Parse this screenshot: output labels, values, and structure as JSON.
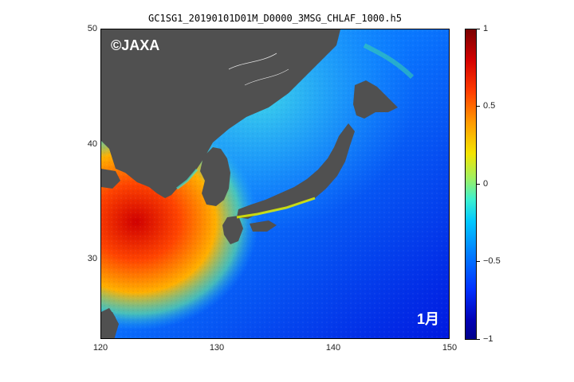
{
  "title": "GC1SG1_20190101D01M_D0000_3MSG_CHLAF_1000.h5",
  "watermark": "©JAXA",
  "month_label": "1月",
  "axes": {
    "x_ticks": [
      "120",
      "130",
      "140",
      "150"
    ],
    "y_ticks": [
      "50",
      "40",
      "30"
    ]
  },
  "colorbar": {
    "ticks": [
      "1",
      "0.5",
      "0",
      "−0.5",
      "−1"
    ],
    "range": [
      -1,
      1
    ]
  },
  "colors": {
    "land": "#505050",
    "ocean_low": "#0030ff",
    "ocean_mid": "#00c8ff",
    "ocean_high": "#ff3c00"
  }
}
